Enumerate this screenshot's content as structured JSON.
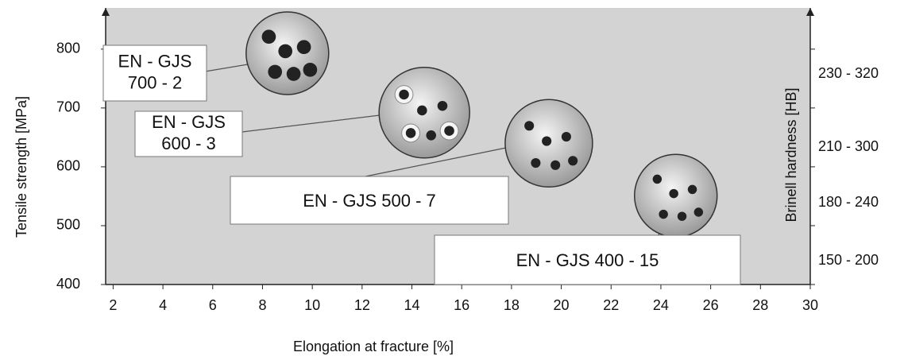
{
  "chart_data": {
    "type": "scatter",
    "x_label": "Elongation at fracture [%]",
    "y_label": "Tensile strength [MPa]",
    "y2_label": "Brinell hardness [HB]",
    "y2_labels": [
      "230 - 320",
      "210 - 300",
      "180 - 240",
      "150 - 200"
    ],
    "xlim": [
      1.7,
      30
    ],
    "xticks": [
      2,
      4,
      6,
      8,
      10,
      12,
      14,
      16,
      18,
      20,
      22,
      24,
      26,
      28,
      30
    ],
    "ylim": [
      400,
      870
    ],
    "yticks": [
      400,
      500,
      600,
      700,
      800
    ],
    "x": [
      9,
      14.5,
      19.5,
      24.6
    ],
    "values": [
      793,
      692,
      640,
      551
    ],
    "annotations": [
      {
        "lines": [
          "EN - GJS",
          "700 - 2"
        ]
      },
      {
        "lines": [
          "EN - GJS",
          "600 - 3"
        ]
      },
      {
        "lines": [
          "EN - GJS 500 - 7"
        ]
      },
      {
        "lines": [
          "EN - GJS 400 - 15"
        ]
      }
    ],
    "color": "#d3d3d3"
  }
}
